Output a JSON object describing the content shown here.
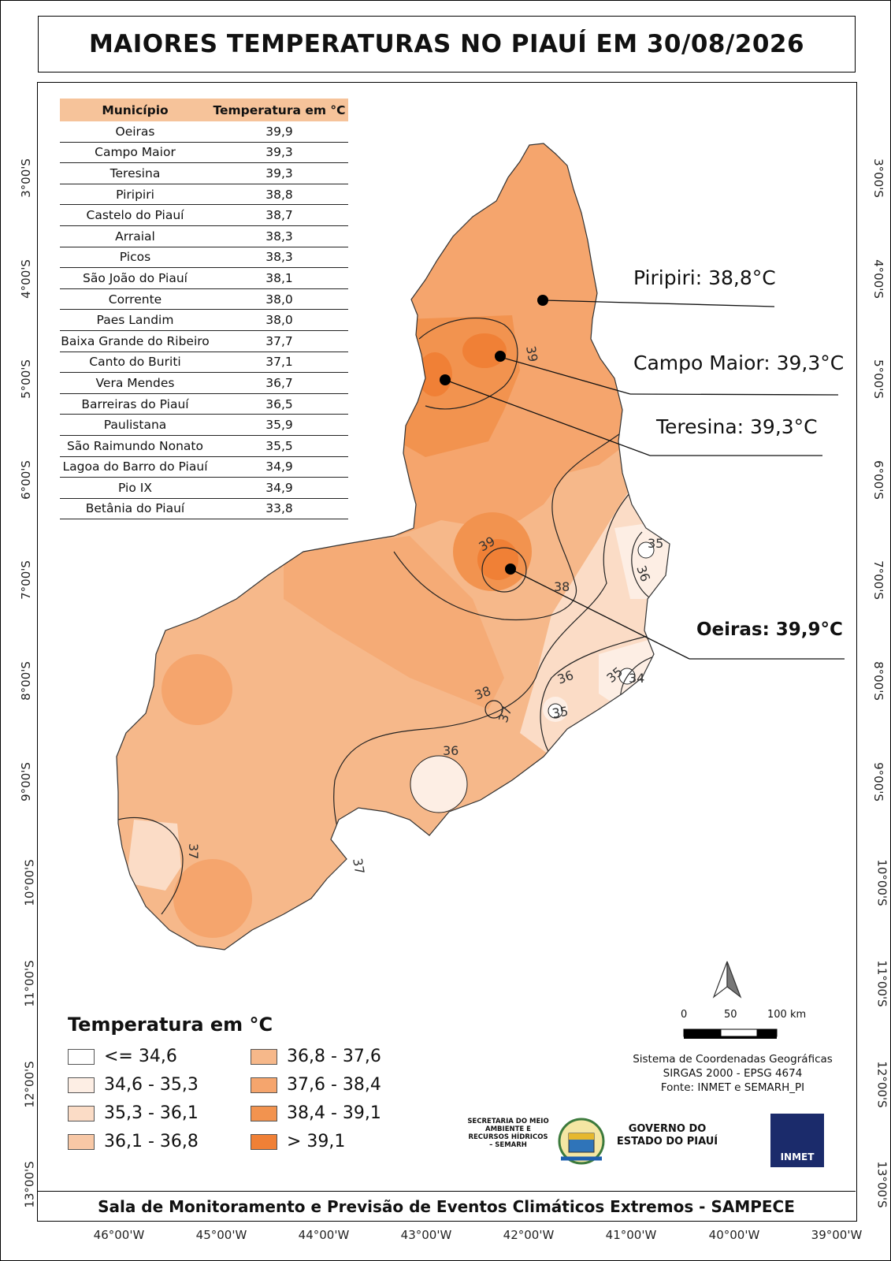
{
  "title": "MAIORES TEMPERATURAS NO PIAUÍ EM 30/08/2026",
  "footer": "Sala de Monitoramento e Previsão de Eventos Climáticos Extremos - SAMPECE",
  "ranking_table": {
    "headers": [
      "Município",
      "Temperatura em °C"
    ],
    "rows": [
      [
        "Oeiras",
        "39,9"
      ],
      [
        "Campo Maior",
        "39,3"
      ],
      [
        "Teresina",
        "39,3"
      ],
      [
        "Piripiri",
        "38,8"
      ],
      [
        "Castelo do Piauí",
        "38,7"
      ],
      [
        "Arraial",
        "38,3"
      ],
      [
        "Picos",
        "38,3"
      ],
      [
        "São João do Piauí",
        "38,1"
      ],
      [
        "Corrente",
        "38,0"
      ],
      [
        "Paes Landim",
        "38,0"
      ],
      [
        "Baixa Grande do Ribeiro",
        "37,7"
      ],
      [
        "Canto do Buriti",
        "37,1"
      ],
      [
        "Vera Mendes",
        "36,7"
      ],
      [
        "Barreiras do Piauí",
        "36,5"
      ],
      [
        "Paulistana",
        "35,9"
      ],
      [
        "São Raimundo Nonato",
        "35,5"
      ],
      [
        "Lagoa do Barro do Piauí",
        "34,9"
      ],
      [
        "Pio IX",
        "34,9"
      ],
      [
        "Betânia do Piauí",
        "33,8"
      ]
    ]
  },
  "lat_ticks": [
    "3°00'S",
    "4°00'S",
    "5°00'S",
    "6°00'S",
    "7°00'S",
    "8°00'S",
    "9°00'S",
    "10°00'S",
    "11°00'S",
    "12°00'S",
    "13°00'S"
  ],
  "lon_ticks": [
    "46°00'W",
    "45°00'W",
    "44°00'W",
    "43°00'W",
    "42°00'W",
    "41°00'W",
    "40°00'W",
    "39°00'W"
  ],
  "callouts": {
    "piripiri": "Piripiri: 38,8°C",
    "campo_maior": "Campo Maior: 39,3°C",
    "teresina": "Teresina: 39,3°C",
    "oeiras": "Oeiras: 39,9°C"
  },
  "isolines": [
    "39",
    "39",
    "38",
    "35",
    "36",
    "38",
    "37",
    "36",
    "35",
    "34",
    "35",
    "36",
    "37",
    "37"
  ],
  "legend": {
    "title": "Temperatura em °C",
    "items": [
      {
        "label": "<= 34,6",
        "color": "#ffffff"
      },
      {
        "label": "34,6 - 35,3",
        "color": "#fdeee4"
      },
      {
        "label": "35,3 - 36,1",
        "color": "#fbdcc6"
      },
      {
        "label": "36,1 - 36,8",
        "color": "#f8c8a6"
      },
      {
        "label": "36,8 - 37,6",
        "color": "#f6b88a"
      },
      {
        "label": "37,6 - 38,4",
        "color": "#f5a56d"
      },
      {
        "label": "38,4 - 39,1",
        "color": "#f2934f"
      },
      {
        "label": "> 39,1",
        "color": "#f08036"
      }
    ]
  },
  "scale": {
    "labels": [
      "0",
      "50",
      "100 km"
    ]
  },
  "crs": {
    "line1": "Sistema de Coordenadas Geográficas",
    "line2": "SIRGAS 2000 - EPSG 4674",
    "line3": "Fonte: INMET e SEMARH_PI"
  },
  "logos": {
    "semarh": "SECRETARIA DO MEIO AMBIENTE E RECURSOS HÍDRICOS – SEMARH",
    "governo_line1": "GOVERNO DO",
    "governo_line2": "ESTADO DO PIAUÍ",
    "inmet": "INMET"
  }
}
